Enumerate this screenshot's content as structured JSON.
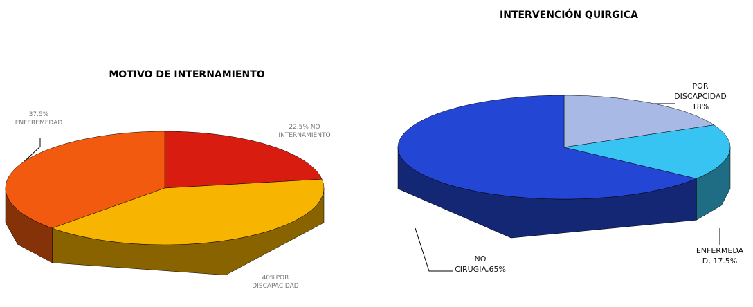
{
  "chart_data": [
    {
      "type": "pie3d",
      "title": "MOTIVO DE INTERNAMIENTO",
      "values": [
        22.5,
        40,
        37.5
      ],
      "value_labels": [
        "22.5% NO INTERNAMIENTO",
        "40%POR DISCAPACIDAD",
        "37.5% ENFEREMEDAD"
      ],
      "colors": [
        "#d81c10",
        "#f7b400",
        "#f25a10"
      ]
    },
    {
      "type": "pie3d",
      "title": "INTERVENCIÓN QUIRGICA",
      "values": [
        18,
        17.5,
        65
      ],
      "value_labels": [
        "POR DISCAPCIDAD 18%",
        "ENFERMEDA D, 17.5%",
        "NO CIRUGIA,65%"
      ],
      "colors": [
        "#a9b9e6",
        "#38c4f2",
        "#2446d4"
      ]
    }
  ]
}
